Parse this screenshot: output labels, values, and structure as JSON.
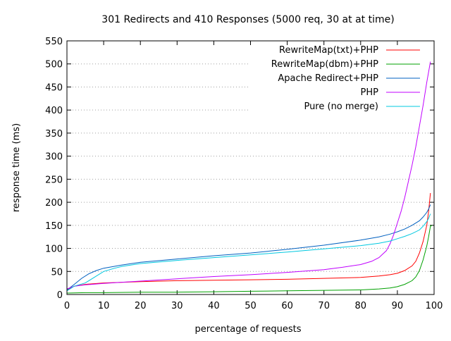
{
  "chart_data": {
    "type": "line",
    "title": "301 Redirects and 410 Responses (5000 req, 30 at at time)",
    "xlabel": "percentage of requests",
    "ylabel": "response time (ms)",
    "xlim": [
      0,
      100
    ],
    "ylim": [
      0,
      550
    ],
    "xticks": [
      0,
      10,
      20,
      30,
      40,
      50,
      60,
      70,
      80,
      90,
      100
    ],
    "yticks": [
      0,
      50,
      100,
      150,
      200,
      250,
      300,
      350,
      400,
      450,
      500,
      550
    ],
    "grid": "horizontal dotted",
    "legend_position": "top-right",
    "series": [
      {
        "name": "RewriteMap(txt)+PHP",
        "color": "#ff0000",
        "points": [
          [
            0,
            10
          ],
          [
            2,
            18
          ],
          [
            5,
            22
          ],
          [
            10,
            25
          ],
          [
            20,
            28
          ],
          [
            30,
            30
          ],
          [
            40,
            31
          ],
          [
            50,
            32
          ],
          [
            60,
            33
          ],
          [
            70,
            35
          ],
          [
            80,
            37
          ],
          [
            85,
            40
          ],
          [
            88,
            43
          ],
          [
            90,
            46
          ],
          [
            92,
            52
          ],
          [
            94,
            62
          ],
          [
            95,
            72
          ],
          [
            96,
            90
          ],
          [
            97,
            115
          ],
          [
            98,
            150
          ],
          [
            98.5,
            180
          ],
          [
            99,
            220
          ]
        ]
      },
      {
        "name": "RewriteMap(dbm)+PHP",
        "color": "#00a000",
        "points": [
          [
            0,
            3
          ],
          [
            5,
            4
          ],
          [
            10,
            4
          ],
          [
            20,
            5
          ],
          [
            30,
            5
          ],
          [
            40,
            6
          ],
          [
            50,
            7
          ],
          [
            60,
            8
          ],
          [
            70,
            9
          ],
          [
            80,
            10
          ],
          [
            85,
            12
          ],
          [
            88,
            14
          ],
          [
            90,
            17
          ],
          [
            92,
            22
          ],
          [
            94,
            30
          ],
          [
            95,
            38
          ],
          [
            96,
            52
          ],
          [
            97,
            75
          ],
          [
            98,
            105
          ],
          [
            98.5,
            125
          ],
          [
            99,
            148
          ],
          [
            99.5,
            150
          ]
        ]
      },
      {
        "name": "Apache Redirect+PHP",
        "color": "#0060c0",
        "points": [
          [
            0,
            10
          ],
          [
            2,
            22
          ],
          [
            4,
            35
          ],
          [
            6,
            45
          ],
          [
            8,
            52
          ],
          [
            10,
            57
          ],
          [
            15,
            64
          ],
          [
            20,
            70
          ],
          [
            30,
            77
          ],
          [
            40,
            84
          ],
          [
            50,
            90
          ],
          [
            60,
            98
          ],
          [
            70,
            107
          ],
          [
            80,
            118
          ],
          [
            85,
            125
          ],
          [
            88,
            131
          ],
          [
            90,
            136
          ],
          [
            92,
            142
          ],
          [
            94,
            150
          ],
          [
            96,
            160
          ],
          [
            97,
            168
          ],
          [
            98,
            178
          ],
          [
            98.5,
            185
          ],
          [
            99,
            195
          ]
        ]
      },
      {
        "name": "PHP",
        "color": "#c000ff",
        "points": [
          [
            0,
            12
          ],
          [
            2,
            18
          ],
          [
            5,
            21
          ],
          [
            10,
            24
          ],
          [
            20,
            29
          ],
          [
            30,
            34
          ],
          [
            40,
            39
          ],
          [
            50,
            43
          ],
          [
            60,
            48
          ],
          [
            70,
            54
          ],
          [
            75,
            59
          ],
          [
            80,
            65
          ],
          [
            83,
            72
          ],
          [
            85,
            80
          ],
          [
            87,
            95
          ],
          [
            88,
            110
          ],
          [
            89,
            130
          ],
          [
            90,
            155
          ],
          [
            91,
            180
          ],
          [
            92,
            210
          ],
          [
            93,
            245
          ],
          [
            94,
            280
          ],
          [
            95,
            320
          ],
          [
            96,
            365
          ],
          [
            97,
            410
          ],
          [
            98,
            460
          ],
          [
            99,
            505
          ]
        ]
      },
      {
        "name": "Pure (no merge)",
        "color": "#00c8e0",
        "points": [
          [
            0,
            8
          ],
          [
            2,
            18
          ],
          [
            5,
            25
          ],
          [
            8,
            40
          ],
          [
            10,
            50
          ],
          [
            13,
            57
          ],
          [
            15,
            61
          ],
          [
            20,
            67
          ],
          [
            30,
            74
          ],
          [
            40,
            80
          ],
          [
            50,
            86
          ],
          [
            60,
            92
          ],
          [
            70,
            99
          ],
          [
            80,
            106
          ],
          [
            85,
            111
          ],
          [
            88,
            116
          ],
          [
            90,
            121
          ],
          [
            92,
            126
          ],
          [
            94,
            132
          ],
          [
            96,
            140
          ],
          [
            97,
            148
          ],
          [
            98,
            158
          ],
          [
            98.5,
            165
          ],
          [
            99,
            175
          ]
        ]
      }
    ]
  }
}
